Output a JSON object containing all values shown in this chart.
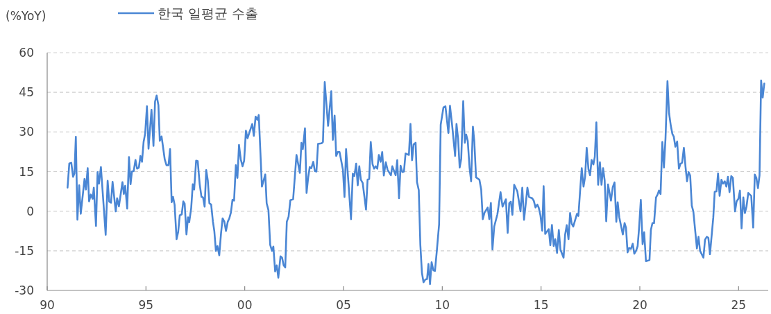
{
  "chart_data": {
    "type": "line",
    "ylabel": "(%YoY)",
    "legend": "top",
    "grid": "y",
    "xlim": [
      1990,
      2026.5
    ],
    "ylim": [
      -30,
      60
    ],
    "xticks": [
      {
        "value": 1990,
        "label": "90"
      },
      {
        "value": 1995,
        "label": "95"
      },
      {
        "value": 2000,
        "label": "00"
      },
      {
        "value": 2005,
        "label": "05"
      },
      {
        "value": 2010,
        "label": "10"
      },
      {
        "value": 2015,
        "label": "15"
      },
      {
        "value": 2020,
        "label": "20"
      },
      {
        "value": 2025,
        "label": "25"
      }
    ],
    "yticks": [
      -30,
      -15,
      0,
      15,
      30,
      45,
      60
    ],
    "x": [
      1991.03,
      1991.12,
      1991.22,
      1991.31,
      1991.38,
      1991.45,
      1991.53,
      1991.62,
      1991.7,
      1991.89,
      1991.96,
      1992.05,
      1992.12,
      1992.21,
      1992.3,
      1992.36,
      1992.47,
      1992.55,
      1992.62,
      1992.72,
      1992.96,
      1993.06,
      1993.14,
      1993.23,
      1993.31,
      1993.47,
      1993.54,
      1993.63,
      1993.81,
      1993.88,
      1993.95,
      1994.05,
      1994.14,
      1994.22,
      1994.29,
      1994.38,
      1994.47,
      1994.55,
      1994.64,
      1994.72,
      1994.8,
      1994.88,
      1994.96,
      1995.05,
      1995.13,
      1995.28,
      1995.38,
      1995.46,
      1995.54,
      1995.63,
      1995.7,
      1995.79,
      1995.87,
      1995.95,
      1996.04,
      1996.14,
      1996.22,
      1996.3,
      1996.37,
      1996.45,
      1996.55,
      1996.63,
      1996.71,
      1996.81,
      1996.89,
      1996.96,
      1997.05,
      1997.13,
      1997.19,
      1997.29,
      1997.37,
      1997.44,
      1997.54,
      1997.62,
      1997.72,
      1997.81,
      1997.89,
      1997.97,
      1998.05,
      1998.13,
      1998.21,
      1998.3,
      1998.39,
      1998.46,
      1998.54,
      1998.62,
      1998.71,
      1998.8,
      1998.88,
      1998.97,
      1999.05,
      1999.14,
      1999.22,
      1999.3,
      1999.38,
      1999.46,
      1999.55,
      1999.63,
      1999.71,
      1999.8,
      1999.89,
      1999.97,
      2000.06,
      2000.14,
      2000.38,
      2000.46,
      2000.55,
      2000.64,
      2000.71,
      2000.87,
      2001.04,
      2001.11,
      2001.2,
      2001.29,
      2001.38,
      2001.45,
      2001.54,
      2001.62,
      2001.7,
      2001.81,
      2001.89,
      2001.97,
      2002.05,
      2002.13,
      2002.22,
      2002.31,
      2002.45,
      2002.62,
      2002.79,
      2002.87,
      2002.94,
      2003.05,
      2003.13,
      2003.21,
      2003.29,
      2003.37,
      2003.47,
      2003.55,
      2003.63,
      2003.71,
      2003.89,
      2003.96,
      2004.05,
      2004.22,
      2004.38,
      2004.46,
      2004.55,
      2004.63,
      2004.71,
      2004.8,
      2004.97,
      2005.05,
      2005.13,
      2005.38,
      2005.47,
      2005.55,
      2005.64,
      2005.72,
      2005.8,
      2005.88,
      2005.97,
      2006.14,
      2006.22,
      2006.3,
      2006.38,
      2006.47,
      2006.55,
      2006.63,
      2006.71,
      2006.79,
      2006.88,
      2006.96,
      2007.04,
      2007.14,
      2007.23,
      2007.4,
      2007.47,
      2007.64,
      2007.72,
      2007.81,
      2007.89,
      2007.98,
      2008.06,
      2008.14,
      2008.31,
      2008.39,
      2008.47,
      2008.55,
      2008.65,
      2008.72,
      2008.81,
      2008.89,
      2008.97,
      2009.05,
      2009.14,
      2009.23,
      2009.3,
      2009.38,
      2009.46,
      2009.55,
      2009.63,
      2009.73,
      2009.84,
      2009.92,
      2010.06,
      2010.16,
      2010.31,
      2010.39,
      2010.49,
      2010.65,
      2010.72,
      2010.8,
      2010.88,
      2010.96,
      2011.06,
      2011.14,
      2011.21,
      2011.29,
      2011.38,
      2011.46,
      2011.55,
      2011.62,
      2011.71,
      2011.88,
      2011.97,
      2012.05,
      2012.14,
      2012.3,
      2012.38,
      2012.46,
      2012.54,
      2012.63,
      2012.79,
      2012.95,
      2013.05,
      2013.22,
      2013.31,
      2013.39,
      2013.47,
      2013.55,
      2013.64,
      2013.8,
      2013.96,
      2014.05,
      2014.14,
      2014.31,
      2014.39,
      2014.55,
      2014.63,
      2014.72,
      2014.81,
      2014.88,
      2014.97,
      2015.06,
      2015.13,
      2015.21,
      2015.39,
      2015.47,
      2015.55,
      2015.64,
      2015.72,
      2015.81,
      2015.9,
      2015.98,
      2016.14,
      2016.22,
      2016.3,
      2016.39,
      2016.47,
      2016.55,
      2016.63,
      2016.82,
      2016.89,
      2016.97,
      2017.06,
      2017.15,
      2017.23,
      2017.31,
      2017.4,
      2017.48,
      2017.56,
      2017.65,
      2017.72,
      2017.8,
      2017.89,
      2017.98,
      2018.06,
      2018.14,
      2018.22,
      2018.3,
      2018.39,
      2018.54,
      2018.63,
      2018.72,
      2018.81,
      2018.88,
      2018.96,
      2019.14,
      2019.23,
      2019.3,
      2019.38,
      2019.46,
      2019.55,
      2019.64,
      2019.72,
      2019.81,
      2019.89,
      2019.96,
      2020.05,
      2020.14,
      2020.22,
      2020.31,
      2020.49,
      2020.56,
      2020.64,
      2020.72,
      2020.82,
      2020.9,
      2020.97,
      2021.05,
      2021.14,
      2021.22,
      2021.3,
      2021.4,
      2021.48,
      2021.57,
      2021.65,
      2021.72,
      2021.8,
      2021.89,
      2021.98,
      2022.06,
      2022.14,
      2022.23,
      2022.31,
      2022.39,
      2022.47,
      2022.55,
      2022.63,
      2022.71,
      2022.89,
      2022.97,
      2023.05,
      2023.22,
      2023.3,
      2023.39,
      2023.47,
      2023.55,
      2023.72,
      2023.79,
      2023.88,
      2023.96,
      2024.04,
      2024.13,
      2024.21,
      2024.3,
      2024.38,
      2024.46,
      2024.54,
      2024.63,
      2024.71,
      2024.82,
      2024.9,
      2024.99,
      2025.07,
      2025.15,
      2025.24,
      2025.32,
      2025.4,
      2025.49,
      2025.64,
      2025.74,
      2025.82,
      2025.9,
      2025.98,
      2026.06,
      2026.14,
      2026.22,
      2026.3
    ],
    "series": [
      {
        "name": "한국 일평균 수출",
        "color": "#4a86d4",
        "values": [
          8.9,
          18.1,
          18.3,
          13.0,
          14.3,
          28.2,
          -3.2,
          9.8,
          -1.0,
          12.2,
          8.2,
          16.3,
          3.7,
          6.3,
          4.7,
          8.9,
          -5.6,
          14.8,
          10.4,
          16.7,
          -8.9,
          11.5,
          3.6,
          3.2,
          11.1,
          -0.1,
          4.9,
          1.8,
          11.0,
          6.5,
          9.6,
          1.0,
          20.5,
          10.2,
          15.0,
          15.2,
          19.4,
          16.1,
          16.5,
          20.9,
          18.7,
          26.2,
          29.4,
          39.7,
          23.7,
          38.4,
          24.7,
          41.5,
          43.8,
          40.1,
          26.6,
          28.3,
          24.0,
          19.6,
          17.4,
          17.4,
          23.5,
          3.4,
          5.4,
          2.5,
          -10.6,
          -7.9,
          -1.6,
          -1.2,
          3.7,
          2.8,
          -8.8,
          -2.3,
          -4.2,
          1.2,
          10.2,
          8.2,
          19.1,
          19.0,
          10.2,
          5.4,
          5.2,
          1.7,
          15.6,
          11.7,
          3.0,
          2.5,
          -4.0,
          -7.5,
          -15.0,
          -13.2,
          -16.7,
          -8.4,
          -2.7,
          -4.0,
          -7.5,
          -4.0,
          -2.7,
          -0.5,
          4.3,
          4.0,
          17.4,
          12.6,
          25.1,
          19.6,
          17.0,
          19.1,
          30.5,
          27.6,
          33.0,
          28.5,
          35.8,
          34.6,
          36.4,
          9.3,
          13.9,
          3.0,
          0.4,
          -12.8,
          -15.0,
          -13.4,
          -22.8,
          -20.5,
          -25.2,
          -17.1,
          -17.6,
          -20.5,
          -21.3,
          -4.0,
          -2.1,
          4.2,
          4.5,
          21.3,
          14.5,
          25.9,
          23.5,
          31.4,
          6.9,
          12.6,
          16.7,
          16.3,
          18.7,
          15.2,
          15.0,
          25.5,
          25.7,
          26.2,
          48.9,
          32.3,
          45.4,
          27.0,
          36.2,
          20.9,
          22.4,
          22.4,
          15.7,
          5.4,
          23.5,
          -3.0,
          14.2,
          13.3,
          18.0,
          9.8,
          17.0,
          11.9,
          10.7,
          0.6,
          12.0,
          12.2,
          26.2,
          17.8,
          16.1,
          17.0,
          16.1,
          21.3,
          18.7,
          22.4,
          13.5,
          18.5,
          15.7,
          13.6,
          17.0,
          13.6,
          19.3,
          4.9,
          17.2,
          14.8,
          15.0,
          21.8,
          21.3,
          33.0,
          19.3,
          25.3,
          25.9,
          11.0,
          8.0,
          -12.8,
          -23.3,
          -26.9,
          -25.9,
          -25.7,
          -20.0,
          -27.6,
          -19.3,
          -22.4,
          -22.6,
          -14.5,
          -4.9,
          32.7,
          39.3,
          39.7,
          29.6,
          39.9,
          33.2,
          20.9,
          33.0,
          27.5,
          16.5,
          19.8,
          41.7,
          25.9,
          29.0,
          26.6,
          16.5,
          11.3,
          32.0,
          26.6,
          12.8,
          11.9,
          8.2,
          -3.0,
          -0.5,
          1.4,
          -3.0,
          3.1,
          -14.5,
          -5.8,
          -1.2,
          7.2,
          1.7,
          4.5,
          -8.2,
          3.0,
          3.6,
          -1.4,
          10.0,
          7.5,
          -0.1,
          8.9,
          -3.3,
          8.9,
          5.4,
          4.9,
          4.0,
          1.4,
          2.5,
          1.4,
          -1.6,
          -7.4,
          9.5,
          -8.6,
          -6.8,
          -12.9,
          -5.2,
          -13.2,
          -10.6,
          -15.8,
          -7.1,
          -14.5,
          -17.6,
          -8.8,
          -5.3,
          -10.6,
          -0.7,
          -4.7,
          -5.8,
          -1.0,
          -1.8,
          6.9,
          16.3,
          9.3,
          13.0,
          24.0,
          15.9,
          13.6,
          19.4,
          17.7,
          20.5,
          33.6,
          10.0,
          18.5,
          10.0,
          16.3,
          11.7,
          -3.8,
          10.1,
          4.0,
          9.1,
          10.9,
          -4.0,
          3.4,
          -2.3,
          -8.8,
          -4.5,
          -6.2,
          -15.6,
          -13.9,
          -14.3,
          -12.3,
          -16.1,
          -15.0,
          -13.2,
          -6.6,
          4.3,
          -12.5,
          -8.0,
          -18.9,
          -18.5,
          -7.1,
          -4.5,
          -4.5,
          5.2,
          6.3,
          7.8,
          6.5,
          26.2,
          16.5,
          27.5,
          49.2,
          37.1,
          32.3,
          29.2,
          28.2,
          24.4,
          26.4,
          16.1,
          18.0,
          18.3,
          24.0,
          17.0,
          11.3,
          14.8,
          13.5,
          2.1,
          -0.1,
          -14.1,
          -9.7,
          -15.0,
          -17.6,
          -10.8,
          -9.7,
          -10.1,
          -16.3,
          -2.3,
          7.3,
          7.5,
          14.3,
          5.8,
          11.9,
          10.4,
          11.3,
          9.3,
          13.0,
          7.2,
          13.3,
          12.6,
          -0.1,
          3.7,
          4.7,
          7.8,
          -6.5,
          5.2,
          -0.7,
          1.7,
          6.9,
          5.8,
          -6.2,
          13.9,
          12.6,
          8.7,
          13.6,
          49.5,
          43.0,
          48.3
        ]
      }
    ]
  }
}
